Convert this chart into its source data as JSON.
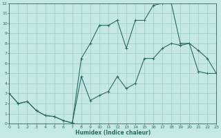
{
  "xlabel": "Humidex (Indice chaleur)",
  "background_color": "#c5e8e2",
  "line_color": "#2a6b62",
  "grid_color": "#9eccc6",
  "x_upper": [
    0,
    1,
    2,
    3,
    4,
    5,
    6,
    7,
    8,
    9,
    10,
    11,
    12,
    13,
    14,
    15,
    16,
    17,
    18,
    19,
    20,
    21,
    22,
    23
  ],
  "y_upper": [
    3.0,
    2.0,
    2.2,
    1.3,
    0.8,
    0.7,
    0.3,
    0.05,
    6.5,
    8.0,
    9.8,
    9.8,
    10.3,
    7.5,
    10.3,
    10.3,
    11.8,
    12.0,
    12.0,
    8.0,
    8.0,
    7.3,
    6.5,
    5.0
  ],
  "x_lower": [
    0,
    1,
    2,
    3,
    4,
    5,
    6,
    7,
    8,
    9,
    10,
    11,
    12,
    13,
    14,
    15,
    16,
    17,
    18,
    19,
    20,
    21,
    22,
    23
  ],
  "y_lower": [
    3.0,
    2.0,
    2.2,
    1.3,
    0.8,
    0.7,
    0.3,
    0.05,
    4.7,
    2.3,
    2.8,
    3.2,
    4.7,
    3.5,
    4.0,
    6.5,
    6.5,
    7.5,
    8.0,
    7.8,
    8.0,
    5.2,
    5.0,
    5.0
  ],
  "xlim": [
    0,
    23
  ],
  "ylim": [
    0,
    12
  ]
}
